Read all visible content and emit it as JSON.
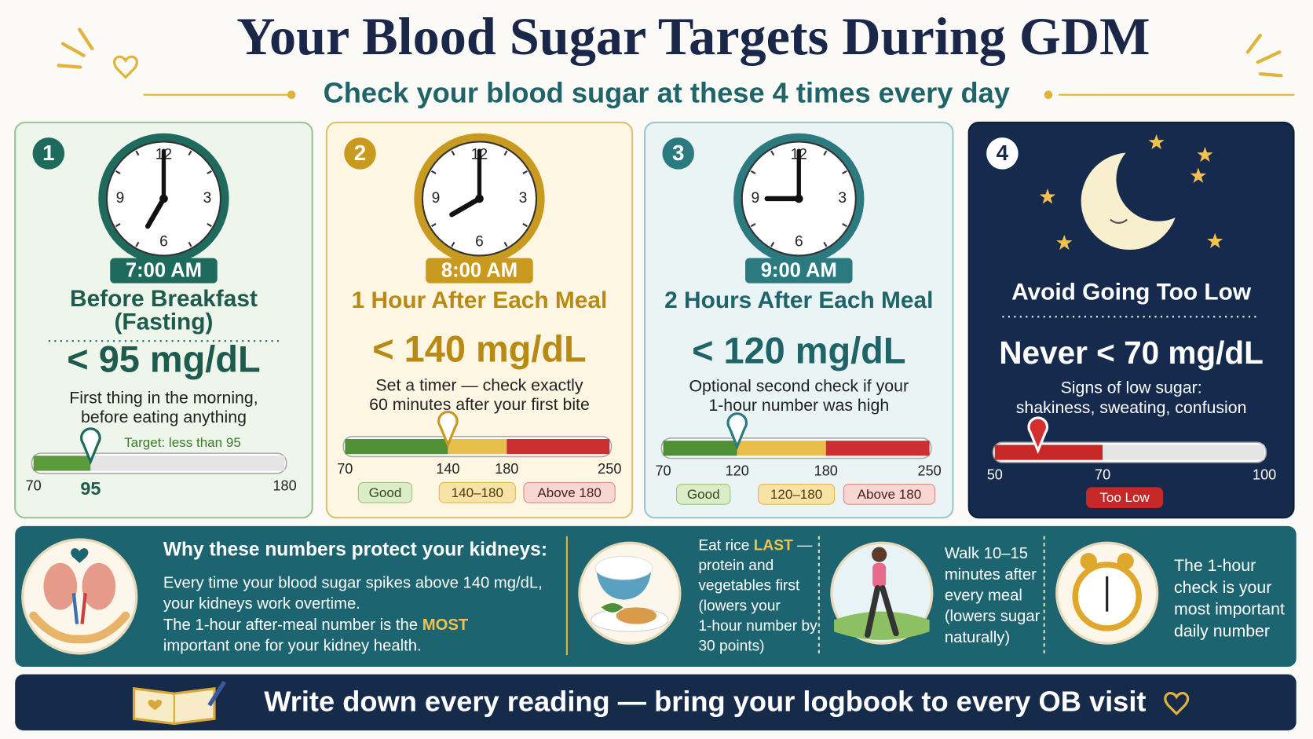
{
  "header": {
    "title": "Your Blood Sugar Targets During GDM",
    "subtitle": "Check your blood sugar at these 4 times every day"
  },
  "cards": [
    {
      "number": "1",
      "time": "7:00 AM",
      "title": [
        "Before Breakfast",
        "(Fasting)"
      ],
      "target": "< 95 mg/dL",
      "note": [
        "First thing in the morning,",
        "before eating anything"
      ],
      "gauge": {
        "caption": "Target: less than 95",
        "lim": [
          70,
          180
        ],
        "ticks": [
          70,
          95,
          180
        ],
        "marker": 95,
        "zones": [
          {
            "from": 70,
            "to": 95,
            "color": "#5c9a3c"
          },
          {
            "from": 95,
            "to": 180,
            "color": "#e4e4e4"
          }
        ],
        "legend": []
      }
    },
    {
      "number": "2",
      "time": "8:00 AM",
      "title": [
        "1 Hour After Each Meal"
      ],
      "target": "< 140 mg/dL",
      "note": [
        "Set a timer — check exactly",
        "60 minutes after your first bite"
      ],
      "gauge": {
        "lim": [
          70,
          250
        ],
        "ticks": [
          70,
          140,
          180,
          250
        ],
        "marker": 140,
        "zones": [
          {
            "from": 70,
            "to": 140,
            "color": "#4f8f35"
          },
          {
            "from": 140,
            "to": 180,
            "color": "#e8bf4a"
          },
          {
            "from": 180,
            "to": 250,
            "color": "#cc2f2f"
          }
        ],
        "legend": [
          {
            "text": "Good",
            "fill": "#dcebc8",
            "stroke": "#9cc47a",
            "text_color": "#2e4a1e"
          },
          {
            "text": "140–180",
            "fill": "#f8e2a6",
            "stroke": "#e0b94e",
            "text_color": "#4a3a10"
          },
          {
            "text": "Above 180",
            "fill": "#f8d6d2",
            "stroke": "#e08a84",
            "text_color": "#4a1e1e"
          }
        ]
      }
    },
    {
      "number": "3",
      "time": "9:00 AM",
      "title": [
        "2 Hours After Each Meal"
      ],
      "target": "< 120 mg/dL",
      "note": [
        "Optional second check if your",
        "1-hour number was high"
      ],
      "gauge": {
        "lim": [
          70,
          250
        ],
        "ticks": [
          70,
          120,
          180,
          250
        ],
        "marker": 120,
        "zones": [
          {
            "from": 70,
            "to": 120,
            "color": "#4f8f35"
          },
          {
            "from": 120,
            "to": 180,
            "color": "#e8bf4a"
          },
          {
            "from": 180,
            "to": 250,
            "color": "#cc2f2f"
          }
        ],
        "legend": [
          {
            "text": "Good",
            "fill": "#dcebc8",
            "stroke": "#9cc47a",
            "text_color": "#2e4a1e"
          },
          {
            "text": "120–180",
            "fill": "#f8e2a6",
            "stroke": "#e0b94e",
            "text_color": "#4a3a10"
          },
          {
            "text": "Above 180",
            "fill": "#f8d6d2",
            "stroke": "#e08a84",
            "text_color": "#4a1e1e"
          }
        ]
      }
    },
    {
      "number": "4",
      "title": [
        "Avoid Going Too Low"
      ],
      "target": "Never < 70 mg/dL",
      "note": [
        "Signs of low sugar:",
        "shakiness, sweating, confusion"
      ],
      "gauge": {
        "lim": [
          50,
          100
        ],
        "ticks": [
          50,
          70,
          100
        ],
        "marker": 58,
        "zones": [
          {
            "from": 50,
            "to": 70,
            "color": "#c62828"
          },
          {
            "from": 70,
            "to": 100,
            "color": "#e4e4e4"
          }
        ],
        "legend": [
          {
            "text": "Too Low",
            "fill": "#c62828",
            "stroke": "#c62828",
            "text_color": "#ffffff"
          }
        ]
      }
    }
  ],
  "kidneys": {
    "title": "Why these numbers protect your kidneys:",
    "lines": [
      [
        {
          "text": "Every time your blood sugar spikes above 140 mg/dL,"
        }
      ],
      [
        {
          "text": "your kidneys work overtime."
        }
      ],
      [
        {
          "text": "The 1-hour after-meal number is the "
        },
        {
          "text": "MOST",
          "color": "#f2c14e"
        }
      ],
      [
        {
          "text": "important one for your kidney health."
        }
      ]
    ]
  },
  "tips": [
    {
      "lines": [
        [
          {
            "text": "Eat rice "
          },
          {
            "text": "LAST",
            "color": "#f2c14e"
          },
          {
            "text": " —"
          }
        ],
        [
          {
            "text": "protein and"
          }
        ],
        [
          {
            "text": "vegetables first"
          }
        ],
        [
          {
            "text": "(lowers your"
          }
        ],
        [
          {
            "text": "1-hour number by"
          }
        ],
        [
          {
            "text": "30 points)"
          }
        ]
      ]
    },
    {
      "lines": [
        [
          {
            "text": "Walk 10–15"
          }
        ],
        [
          {
            "text": "minutes after"
          }
        ],
        [
          {
            "text": "every meal"
          }
        ],
        [
          {
            "text": "(lowers sugar"
          }
        ],
        [
          {
            "text": "naturally)"
          }
        ]
      ]
    },
    {
      "lines": [
        [
          {
            "text": "The 1-hour"
          }
        ],
        [
          {
            "text": "check is your"
          }
        ],
        [
          {
            "text": "most important"
          }
        ],
        [
          {
            "text": "daily number"
          }
        ]
      ]
    }
  ],
  "footer": {
    "text": "Write down every reading — bring your logbook to every OB visit"
  }
}
